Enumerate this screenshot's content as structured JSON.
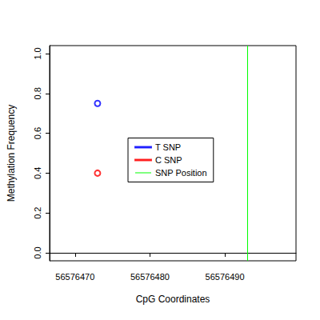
{
  "chart_data": {
    "type": "scatter",
    "x_label": "CpG Coordinates",
    "y_label": "Methylation Frequency",
    "xlim": [
      56576466.6,
      56576499.5
    ],
    "xticks": [
      56576470,
      56576480,
      56576490
    ],
    "ylim": [
      -0.04,
      1.04
    ],
    "yticks": [
      {
        "value": 0,
        "label": "0.0"
      },
      {
        "value": 0.2,
        "label": "0.2"
      },
      {
        "value": 0.4,
        "label": "0.4"
      },
      {
        "value": 0.6,
        "label": "0.6"
      },
      {
        "value": 0.8,
        "label": "0.8"
      },
      {
        "value": 1.0,
        "label": "1.0"
      }
    ],
    "grid": false,
    "legend": "center",
    "series": [
      {
        "name": "T SNP",
        "type": "scatter",
        "color": "#0000ff",
        "marker": "open_circle",
        "x": [
          56576473
        ],
        "values": [
          0.75
        ]
      },
      {
        "name": "C SNP",
        "type": "scatter",
        "color": "#ff0000",
        "marker": "open_circle",
        "x": [
          56576473
        ],
        "values": [
          0.4
        ]
      },
      {
        "name": "SNP Position",
        "type": "vline",
        "color": "#00ff00",
        "x": [
          56576493
        ]
      }
    ]
  }
}
